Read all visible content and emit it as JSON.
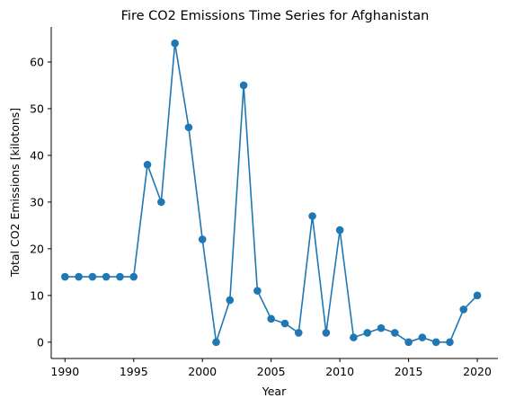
{
  "chart_data": {
    "type": "line",
    "title": "Fire CO2 Emissions Time Series for Afghanistan",
    "xlabel": "Year",
    "ylabel": "Total CO2 Emissions [kilotons]",
    "xlim": [
      1989,
      2021.5
    ],
    "ylim": [
      -3.5,
      67.5
    ],
    "xticks": [
      1990,
      1995,
      2000,
      2005,
      2010,
      2015,
      2020
    ],
    "yticks": [
      0,
      10,
      20,
      30,
      40,
      50,
      60
    ],
    "grid": false,
    "series": [
      {
        "color": "#1f77b4",
        "x": [
          1990,
          1991,
          1992,
          1993,
          1994,
          1995,
          1996,
          1997,
          1998,
          1999,
          2000,
          2001,
          2002,
          2003,
          2004,
          2005,
          2006,
          2007,
          2008,
          2009,
          2010,
          2011,
          2012,
          2013,
          2014,
          2015,
          2016,
          2017,
          2018,
          2019,
          2020
        ],
        "y": [
          14,
          14,
          14,
          14,
          14,
          14,
          38,
          30,
          64,
          46,
          22,
          0,
          9,
          55,
          11,
          5,
          4,
          2,
          27,
          2,
          24,
          1,
          2,
          3,
          2,
          0,
          1,
          0,
          0,
          7,
          10
        ]
      }
    ]
  }
}
